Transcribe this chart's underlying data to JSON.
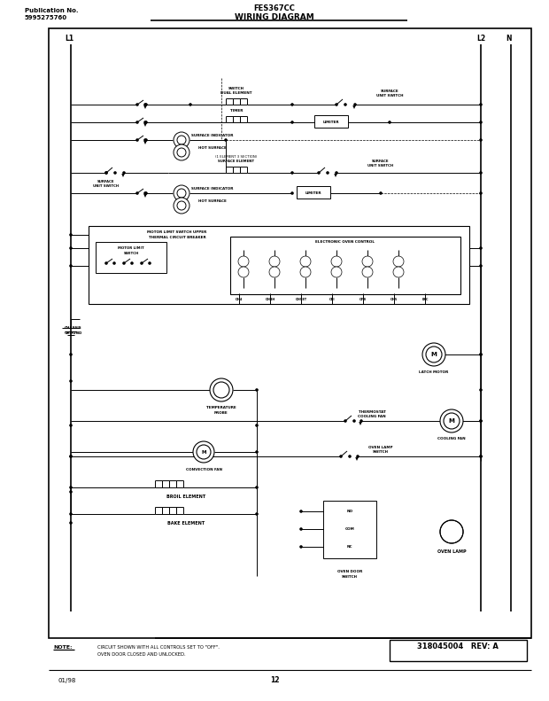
{
  "title": "FES367CC",
  "subtitle": "WIRING DIAGRAM",
  "pub_no": "Publication No.",
  "pub_num": "5995275760",
  "diagram_no": "318045004",
  "rev": "REV: A",
  "date": "01/98",
  "page": "12",
  "note_line1": "CIRCUIT SHOWN WITH ALL CONTROLS SET TO \"OFF\".",
  "note_line2": "OVEN DOOR CLOSED AND UNLOCKED.",
  "bg_color": "#ffffff",
  "line_color": "#000000"
}
